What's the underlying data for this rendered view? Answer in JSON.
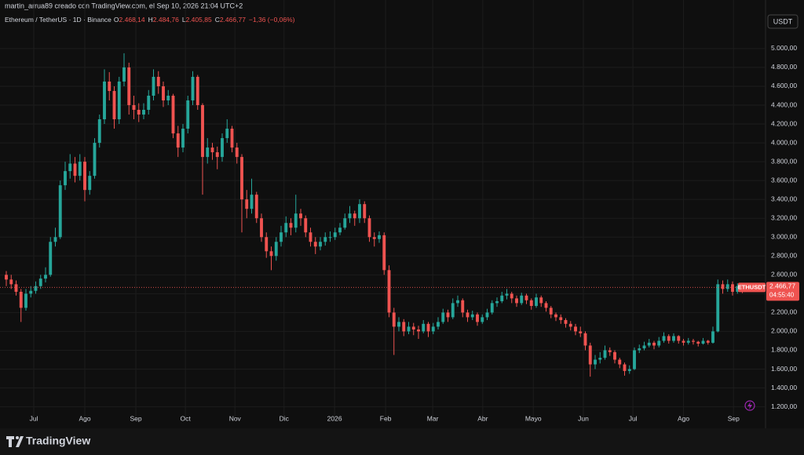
{
  "attribution": "martin_arrua89 creado con TradingView.com, el Sep 10, 2026 21:04 UTC+2",
  "chart_data": {
    "type": "candlestick",
    "title": "Ethereum / TetherUS · 1D · Binance",
    "ohlc_labels": [
      {
        "key": "O",
        "value": "2.468,14"
      },
      {
        "key": "H",
        "value": "2.484,76"
      },
      {
        "key": "L",
        "value": "2.405,85"
      },
      {
        "key": "C",
        "value": "2.466,77"
      }
    ],
    "change": "−1,36 (−0,06%)",
    "currency": "USDT",
    "symbol": "ETHUSDT",
    "last_price_label": "2.466,77",
    "countdown": "04:55:40",
    "colors": {
      "up": "#26a69a",
      "down": "#ef5350",
      "background": "#0f0f0f"
    },
    "ylim": [
      1080,
      5515
    ],
    "xlim": [
      -1.28,
      154.72
    ],
    "yticks": [
      {
        "value": 1200,
        "label": "1.200,00"
      },
      {
        "value": 1400,
        "label": "1.400,00"
      },
      {
        "value": 1600,
        "label": "1.600,00"
      },
      {
        "value": 1800,
        "label": "1.800,00"
      },
      {
        "value": 2000,
        "label": "2.000,00"
      },
      {
        "value": 2200,
        "label": "2.200,00"
      },
      {
        "value": 2400,
        "label": "2.400,00"
      },
      {
        "value": 2600,
        "label": "2.600,00"
      },
      {
        "value": 2800,
        "label": "2.800,00"
      },
      {
        "value": 3000,
        "label": "3.000,00"
      },
      {
        "value": 3200,
        "label": "3.200,00"
      },
      {
        "value": 3400,
        "label": "3.400,00"
      },
      {
        "value": 3600,
        "label": "3.600,00"
      },
      {
        "value": 3800,
        "label": "3.800,00"
      },
      {
        "value": 4000,
        "label": "4.000,00"
      },
      {
        "value": 4200,
        "label": "4.200,00"
      },
      {
        "value": 4400,
        "label": "4.400,00"
      },
      {
        "value": 4600,
        "label": "4.600,00"
      },
      {
        "value": 4800,
        "label": "4.800,00"
      },
      {
        "value": 5000,
        "label": "5.000,00"
      }
    ],
    "xticks": [
      {
        "value": 5.6,
        "label": "Jul"
      },
      {
        "value": 16,
        "label": "Ago"
      },
      {
        "value": 26.4,
        "label": "Sep"
      },
      {
        "value": 36.5,
        "label": "Oct"
      },
      {
        "value": 46.6,
        "label": "Nov"
      },
      {
        "value": 56.6,
        "label": "Dic"
      },
      {
        "value": 66.9,
        "label": "2026"
      },
      {
        "value": 77.3,
        "label": "Feb"
      },
      {
        "value": 86.9,
        "label": "Mar"
      },
      {
        "value": 97.1,
        "label": "Abr"
      },
      {
        "value": 107.4,
        "label": "Mayo"
      },
      {
        "value": 117.6,
        "label": "Jun"
      },
      {
        "value": 127.7,
        "label": "Jul"
      },
      {
        "value": 138,
        "label": "Ago"
      },
      {
        "value": 148.2,
        "label": "Sep"
      }
    ],
    "candles": [
      [
        2600,
        2640,
        2480,
        2550
      ],
      [
        2550,
        2600,
        2450,
        2500
      ],
      [
        2500,
        2540,
        2380,
        2420
      ],
      [
        2420,
        2450,
        2100,
        2250
      ],
      [
        2250,
        2450,
        2220,
        2400
      ],
      [
        2400,
        2480,
        2360,
        2430
      ],
      [
        2430,
        2530,
        2400,
        2480
      ],
      [
        2480,
        2600,
        2450,
        2560
      ],
      [
        2560,
        2680,
        2520,
        2600
      ],
      [
        2600,
        3000,
        2580,
        2950
      ],
      [
        2950,
        3100,
        2900,
        3000
      ],
      [
        3000,
        3600,
        2980,
        3550
      ],
      [
        3550,
        3800,
        3500,
        3700
      ],
      [
        3700,
        3880,
        3620,
        3780
      ],
      [
        3780,
        3850,
        3580,
        3650
      ],
      [
        3650,
        3880,
        3600,
        3800
      ],
      [
        3800,
        3850,
        3380,
        3500
      ],
      [
        3500,
        3700,
        3450,
        3650
      ],
      [
        3650,
        4050,
        3620,
        4000
      ],
      [
        4000,
        4300,
        3950,
        4250
      ],
      [
        4250,
        4780,
        4200,
        4650
      ],
      [
        4650,
        4750,
        4450,
        4550
      ],
      [
        4550,
        4600,
        4150,
        4250
      ],
      [
        4250,
        4700,
        4200,
        4650
      ],
      [
        4650,
        4950,
        4600,
        4800
      ],
      [
        4800,
        4850,
        4300,
        4400
      ],
      [
        4400,
        4500,
        4250,
        4350
      ],
      [
        4350,
        4420,
        4220,
        4300
      ],
      [
        4300,
        4420,
        4250,
        4350
      ],
      [
        4350,
        4560,
        4300,
        4500
      ],
      [
        4500,
        4780,
        4450,
        4700
      ],
      [
        4700,
        4760,
        4520,
        4600
      ],
      [
        4600,
        4650,
        4380,
        4450
      ],
      [
        4450,
        4560,
        4400,
        4500
      ],
      [
        4500,
        4520,
        4050,
        4100
      ],
      [
        4100,
        4180,
        3850,
        3950
      ],
      [
        3950,
        4200,
        3900,
        4150
      ],
      [
        4150,
        4500,
        4100,
        4450
      ],
      [
        4450,
        4760,
        4400,
        4700
      ],
      [
        4700,
        4720,
        4350,
        4400
      ],
      [
        4400,
        4420,
        3450,
        3850
      ],
      [
        3850,
        4050,
        3780,
        3950
      ],
      [
        3950,
        4000,
        3820,
        3900
      ],
      [
        3900,
        3960,
        3720,
        3850
      ],
      [
        3850,
        4100,
        3800,
        4050
      ],
      [
        4050,
        4250,
        4000,
        4150
      ],
      [
        4150,
        4180,
        3900,
        3950
      ],
      [
        3950,
        4000,
        3780,
        3850
      ],
      [
        3850,
        3880,
        3050,
        3400
      ],
      [
        3400,
        3500,
        3200,
        3300
      ],
      [
        3300,
        3620,
        3250,
        3450
      ],
      [
        3450,
        3480,
        3150,
        3200
      ],
      [
        3200,
        3250,
        2950,
        3000
      ],
      [
        3000,
        3050,
        2780,
        2850
      ],
      [
        2850,
        2900,
        2650,
        2800
      ],
      [
        2800,
        3000,
        2750,
        2950
      ],
      [
        2950,
        3120,
        2900,
        3050
      ],
      [
        3050,
        3220,
        3000,
        3150
      ],
      [
        3150,
        3200,
        3020,
        3100
      ],
      [
        3100,
        3450,
        3050,
        3250
      ],
      [
        3250,
        3300,
        3120,
        3200
      ],
      [
        3200,
        3230,
        3000,
        3050
      ],
      [
        3050,
        3100,
        2900,
        2950
      ],
      [
        2950,
        3000,
        2820,
        2900
      ],
      [
        2900,
        3000,
        2860,
        2950
      ],
      [
        2950,
        3050,
        2910,
        3000
      ],
      [
        3000,
        3060,
        2950,
        3000
      ],
      [
        3000,
        3100,
        2970,
        3050
      ],
      [
        3050,
        3150,
        3020,
        3100
      ],
      [
        3100,
        3250,
        3080,
        3200
      ],
      [
        3200,
        3330,
        3150,
        3250
      ],
      [
        3250,
        3280,
        3120,
        3200
      ],
      [
        3200,
        3400,
        3150,
        3350
      ],
      [
        3350,
        3380,
        3150,
        3200
      ],
      [
        3200,
        3230,
        2950,
        3000
      ],
      [
        3000,
        3050,
        2900,
        2980
      ],
      [
        2980,
        3060,
        2940,
        3020
      ],
      [
        3020,
        3050,
        2600,
        2650
      ],
      [
        2650,
        2700,
        2150,
        2200
      ],
      [
        2200,
        2250,
        1750,
        2050
      ],
      [
        2050,
        2150,
        2000,
        2100
      ],
      [
        2100,
        2130,
        1950,
        2000
      ],
      [
        2000,
        2100,
        1970,
        2050
      ],
      [
        2050,
        2090,
        1960,
        2020
      ],
      [
        2020,
        2060,
        1920,
        2000
      ],
      [
        2000,
        2120,
        1980,
        2080
      ],
      [
        2080,
        2100,
        1940,
        2000
      ],
      [
        2000,
        2090,
        1970,
        2050
      ],
      [
        2050,
        2150,
        2020,
        2100
      ],
      [
        2100,
        2240,
        2080,
        2200
      ],
      [
        2200,
        2230,
        2100,
        2150
      ],
      [
        2150,
        2350,
        2130,
        2300
      ],
      [
        2300,
        2380,
        2260,
        2330
      ],
      [
        2330,
        2350,
        2150,
        2200
      ],
      [
        2200,
        2230,
        2100,
        2150
      ],
      [
        2150,
        2220,
        2120,
        2180
      ],
      [
        2180,
        2200,
        2060,
        2100
      ],
      [
        2100,
        2180,
        2080,
        2150
      ],
      [
        2150,
        2240,
        2120,
        2200
      ],
      [
        2200,
        2330,
        2180,
        2300
      ],
      [
        2300,
        2360,
        2260,
        2320
      ],
      [
        2320,
        2420,
        2300,
        2380
      ],
      [
        2380,
        2450,
        2340,
        2400
      ],
      [
        2400,
        2420,
        2300,
        2350
      ],
      [
        2350,
        2380,
        2260,
        2300
      ],
      [
        2300,
        2410,
        2280,
        2380
      ],
      [
        2380,
        2400,
        2290,
        2330
      ],
      [
        2330,
        2350,
        2230,
        2270
      ],
      [
        2270,
        2400,
        2250,
        2360
      ],
      [
        2360,
        2380,
        2260,
        2300
      ],
      [
        2300,
        2320,
        2210,
        2250
      ],
      [
        2250,
        2270,
        2140,
        2180
      ],
      [
        2180,
        2200,
        2110,
        2150
      ],
      [
        2150,
        2180,
        2080,
        2120
      ],
      [
        2120,
        2140,
        2040,
        2080
      ],
      [
        2080,
        2110,
        2010,
        2050
      ],
      [
        2050,
        2080,
        1960,
        2000
      ],
      [
        2000,
        2050,
        1940,
        1980
      ],
      [
        1980,
        2000,
        1800,
        1850
      ],
      [
        1850,
        1880,
        1520,
        1650
      ],
      [
        1650,
        1750,
        1600,
        1700
      ],
      [
        1700,
        1780,
        1660,
        1720
      ],
      [
        1720,
        1850,
        1700,
        1800
      ],
      [
        1800,
        1830,
        1740,
        1780
      ],
      [
        1780,
        1800,
        1660,
        1700
      ],
      [
        1700,
        1720,
        1610,
        1650
      ],
      [
        1650,
        1670,
        1530,
        1580
      ],
      [
        1580,
        1640,
        1550,
        1600
      ],
      [
        1600,
        1830,
        1590,
        1800
      ],
      [
        1800,
        1860,
        1770,
        1820
      ],
      [
        1820,
        1890,
        1800,
        1850
      ],
      [
        1850,
        1920,
        1830,
        1880
      ],
      [
        1880,
        1900,
        1810,
        1850
      ],
      [
        1850,
        1940,
        1830,
        1900
      ],
      [
        1900,
        1990,
        1880,
        1950
      ],
      [
        1950,
        1970,
        1870,
        1900
      ],
      [
        1900,
        1980,
        1880,
        1950
      ],
      [
        1950,
        1960,
        1870,
        1900
      ],
      [
        1900,
        1920,
        1850,
        1880
      ],
      [
        1880,
        1930,
        1860,
        1900
      ],
      [
        1900,
        1920,
        1860,
        1890
      ],
      [
        1890,
        1900,
        1840,
        1870
      ],
      [
        1870,
        1930,
        1860,
        1900
      ],
      [
        1900,
        1910,
        1860,
        1880
      ],
      [
        1880,
        2050,
        1870,
        2000
      ],
      [
        2000,
        2550,
        1990,
        2500
      ],
      [
        2500,
        2540,
        2400,
        2450
      ],
      [
        2450,
        2550,
        2420,
        2500
      ],
      [
        2500,
        2530,
        2380,
        2420
      ],
      [
        2420,
        2510,
        2400,
        2480
      ],
      [
        2468.14,
        2484.76,
        2405.85,
        2466.77
      ]
    ]
  },
  "footer": {
    "brand": "TradingView"
  }
}
